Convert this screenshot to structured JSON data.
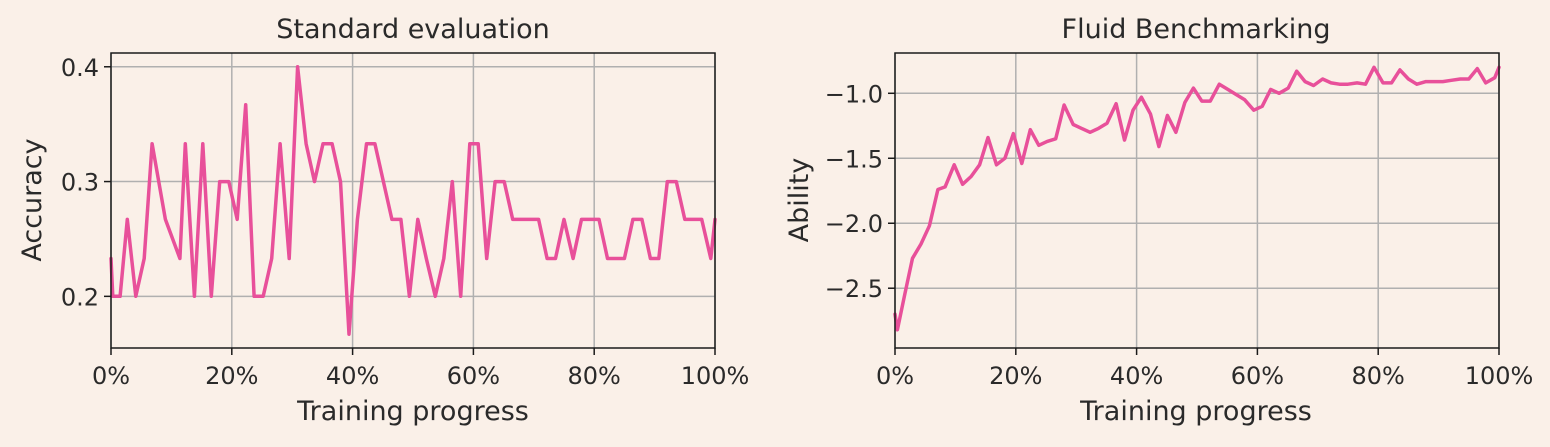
{
  "colors": {
    "background": "#faf0e8",
    "series": "#e8509a"
  },
  "chart_data": [
    {
      "type": "line",
      "title": "Standard evaluation",
      "xlabel": "Training progress",
      "ylabel": "Accuracy",
      "xlim": [
        0,
        100
      ],
      "ylim": [
        0.155,
        0.412
      ],
      "xticks": [
        0,
        20,
        40,
        60,
        80,
        100
      ],
      "xtick_labels": [
        "0%",
        "20%",
        "40%",
        "60%",
        "80%",
        "100%"
      ],
      "yticks": [
        0.2,
        0.3,
        0.4
      ],
      "ytick_labels": [
        "0.2",
        "0.3",
        "0.4"
      ],
      "grid": true,
      "series": [
        {
          "x": [
            0,
            0.3,
            1.5,
            2.7,
            4.1,
            5.5,
            6.8,
            9,
            11.4,
            12.3,
            13.8,
            15.2,
            16.6,
            18,
            19.5,
            20.9,
            22.3,
            23.7,
            25.2,
            26.6,
            28,
            29.5,
            30.9,
            32.3,
            33.7,
            35.1,
            36.6,
            38,
            39.4,
            40.8,
            42.3,
            43.7,
            45.1,
            46.5,
            48,
            49.4,
            50.8,
            52.2,
            53.7,
            55.1,
            56.5,
            57.9,
            59.4,
            60.8,
            62.2,
            63.6,
            65.1,
            66.5,
            67.9,
            69.3,
            70.8,
            72.2,
            73.6,
            75,
            76.5,
            77.9,
            79.3,
            80.8,
            82.2,
            83.6,
            85,
            86.4,
            87.9,
            89.3,
            90.7,
            92.1,
            93.6,
            95,
            96.4,
            97.8,
            99.3,
            100
          ],
          "y": [
            0.233,
            0.2,
            0.2,
            0.267,
            0.2,
            0.233,
            0.333,
            0.267,
            0.233,
            0.333,
            0.2,
            0.333,
            0.2,
            0.3,
            0.3,
            0.267,
            0.367,
            0.2,
            0.2,
            0.233,
            0.333,
            0.233,
            0.4,
            0.333,
            0.3,
            0.333,
            0.333,
            0.3,
            0.167,
            0.267,
            0.333,
            0.333,
            0.3,
            0.267,
            0.267,
            0.2,
            0.267,
            0.233,
            0.2,
            0.233,
            0.3,
            0.2,
            0.333,
            0.333,
            0.233,
            0.3,
            0.3,
            0.267,
            0.267,
            0.267,
            0.267,
            0.233,
            0.233,
            0.267,
            0.233,
            0.267,
            0.267,
            0.267,
            0.233,
            0.233,
            0.233,
            0.267,
            0.267,
            0.233,
            0.233,
            0.3,
            0.3,
            0.267,
            0.267,
            0.267,
            0.233,
            0.267
          ]
        }
      ]
    },
    {
      "type": "line",
      "title": "Fluid Benchmarking",
      "xlabel": "Training progress",
      "ylabel": "Ability",
      "xlim": [
        0,
        100
      ],
      "ylim": [
        -2.96,
        -0.69
      ],
      "xticks": [
        0,
        20,
        40,
        60,
        80,
        100
      ],
      "xtick_labels": [
        "0%",
        "20%",
        "40%",
        "60%",
        "80%",
        "100%"
      ],
      "yticks": [
        -2.5,
        -2.0,
        -1.5,
        -1.0
      ],
      "ytick_labels": [
        "−2.5",
        "−2.0",
        "−1.5",
        "−1.0"
      ],
      "grid": true,
      "series": [
        {
          "x": [
            0,
            0.4,
            1.6,
            2.9,
            4.3,
            5.7,
            7.1,
            8.3,
            9.8,
            11.2,
            12.6,
            14,
            15.4,
            16.8,
            18.2,
            19.6,
            21,
            22.4,
            23.8,
            25.2,
            26.6,
            28,
            29.5,
            30.9,
            32.3,
            33.7,
            35.1,
            36.6,
            38,
            39.4,
            40.8,
            42.3,
            43.7,
            45.1,
            46.5,
            48,
            49.4,
            50.8,
            52.2,
            53.7,
            55.1,
            56.5,
            57.9,
            59.4,
            60.8,
            62.2,
            63.6,
            65.1,
            66.5,
            67.9,
            69.3,
            70.8,
            72.2,
            73.6,
            75,
            76.5,
            77.9,
            79.3,
            80.8,
            82.2,
            83.6,
            85,
            86.4,
            87.9,
            89.3,
            90.7,
            92.1,
            93.6,
            95,
            96.4,
            97.8,
            99.3,
            100
          ],
          "y": [
            -2.7,
            -2.82,
            -2.55,
            -2.27,
            -2.16,
            -2.02,
            -1.74,
            -1.72,
            -1.55,
            -1.7,
            -1.64,
            -1.55,
            -1.34,
            -1.55,
            -1.5,
            -1.31,
            -1.54,
            -1.28,
            -1.4,
            -1.37,
            -1.35,
            -1.09,
            -1.24,
            -1.27,
            -1.3,
            -1.27,
            -1.23,
            -1.08,
            -1.36,
            -1.13,
            -1.03,
            -1.16,
            -1.41,
            -1.17,
            -1.3,
            -1.07,
            -0.96,
            -1.06,
            -1.06,
            -0.93,
            -0.97,
            -1.01,
            -1.05,
            -1.13,
            -1.1,
            -0.97,
            -1.0,
            -0.96,
            -0.83,
            -0.91,
            -0.94,
            -0.89,
            -0.92,
            -0.93,
            -0.93,
            -0.92,
            -0.93,
            -0.8,
            -0.92,
            -0.92,
            -0.82,
            -0.89,
            -0.93,
            -0.91,
            -0.91,
            -0.91,
            -0.9,
            -0.89,
            -0.89,
            -0.81,
            -0.92,
            -0.88,
            -0.8
          ]
        }
      ]
    }
  ]
}
